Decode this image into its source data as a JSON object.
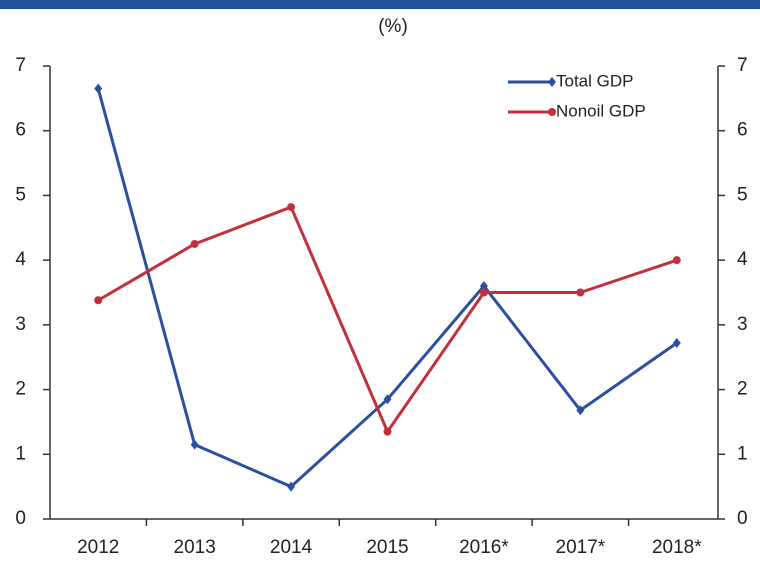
{
  "chart_data": {
    "type": "line",
    "subtitle": "(%)",
    "categories": [
      "2012",
      "2013",
      "2014",
      "2015",
      "2016*",
      "2017*",
      "2018*"
    ],
    "series": [
      {
        "name": "Total GDP",
        "color": "#2d4f9f",
        "values": [
          6.65,
          1.15,
          0.5,
          1.85,
          3.6,
          1.68,
          2.72
        ]
      },
      {
        "name": "Nonoil GDP",
        "color": "#c1303b",
        "values": [
          3.38,
          4.25,
          4.82,
          1.35,
          3.5,
          3.5,
          4.0
        ]
      }
    ],
    "ylim": [
      0,
      7
    ],
    "yticks": [
      0,
      1,
      2,
      3,
      4,
      5,
      6,
      7
    ],
    "y2lim": [
      0,
      7
    ],
    "y2ticks": [
      0,
      1,
      2,
      3,
      4,
      5,
      6,
      7
    ],
    "legend": "upper right"
  }
}
